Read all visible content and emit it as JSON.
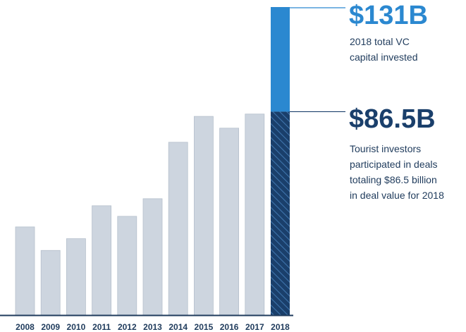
{
  "chart_data": {
    "type": "bar",
    "categories": [
      "2008",
      "2009",
      "2010",
      "2011",
      "2012",
      "2013",
      "2014",
      "2015",
      "2016",
      "2017",
      "2018"
    ],
    "values": [
      37.5,
      27.5,
      32.5,
      46.5,
      42.0,
      49.5,
      73.5,
      84.5,
      79.5,
      85.5,
      131
    ],
    "highlight": {
      "category": "2018",
      "total": 131,
      "subset": 86.5
    },
    "ylim": [
      0,
      134
    ],
    "grid": false,
    "colors": {
      "bar": "#cdd5df",
      "bar_stroke": "#b6c0cc",
      "highlight": "#2b88d0",
      "subset": "#1a3f6b",
      "axis": "#1f3b5c"
    }
  },
  "annotations": {
    "total_value": "$131B",
    "total_lines": [
      "2018 total VC",
      "capital invested"
    ],
    "subset_value": "$86.5B",
    "subset_lines": [
      "Tourist investors",
      "participated in deals",
      "totaling $86.5 billion",
      "in deal value for 2018"
    ],
    "total_color": "#2b88d0",
    "subset_color": "#1a3f6b"
  }
}
